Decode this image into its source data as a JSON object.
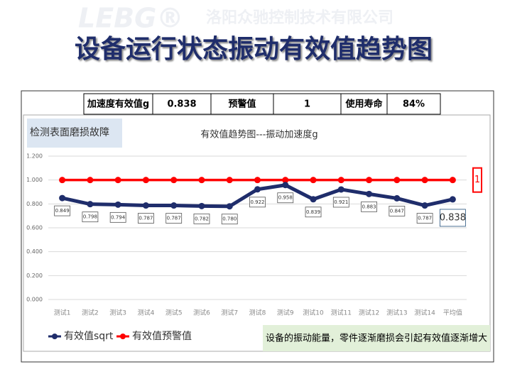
{
  "page": {
    "watermark_logo": "LEBG®",
    "watermark_company": "洛阳众驰控制技术有限公司",
    "heading": "设备运行状态振动有效值趋势图",
    "info_table": [
      "加速度有效值g",
      "0.838",
      "预警值",
      "1",
      "使用寿命",
      "84%"
    ],
    "fault_label": "检测表面磨损故障",
    "note": "设备的振动能量，零件逐渐磨损会引起有效值逐渐增大"
  },
  "chart_data": {
    "type": "line",
    "title": "有效值趋势图---振动加速度g",
    "categories": [
      "测试1",
      "测试2",
      "测试3",
      "测试4",
      "测试5",
      "测试6",
      "测试7",
      "测试8",
      "测试9",
      "测试10",
      "测试11",
      "测试12",
      "测试13",
      "测试14",
      "平均值"
    ],
    "series": [
      {
        "name": "有效值sqrt",
        "color": "#1f2d6b",
        "values": [
          0.849,
          0.798,
          0.794,
          0.787,
          0.787,
          0.782,
          0.78,
          0.922,
          0.958,
          0.839,
          0.921,
          0.883,
          0.847,
          0.787,
          0.838
        ],
        "value_labels": [
          "0.849",
          "0.798",
          "0.794",
          "0.787",
          "0.787",
          "0.782",
          "0.780",
          "0.922",
          "0.958",
          "0.839",
          "0.921",
          "0.883",
          "0.847",
          "0.787",
          "0.838"
        ]
      },
      {
        "name": "有效值预警值",
        "color": "#ff0000",
        "values": [
          1,
          1,
          1,
          1,
          1,
          1,
          1,
          1,
          1,
          1,
          1,
          1,
          1,
          1,
          1
        ]
      }
    ],
    "ylim": [
      0,
      1.2
    ],
    "yticks": [
      {
        "value": 0,
        "label": "0.000"
      },
      {
        "value": 0.2,
        "label": "0.200"
      },
      {
        "value": 0.4,
        "label": "0.400"
      },
      {
        "value": 0.6,
        "label": "0.600"
      },
      {
        "value": 0.8,
        "label": "0.800"
      },
      {
        "value": 1,
        "label": "1.000"
      },
      {
        "value": 1.2,
        "label": "1.200"
      }
    ],
    "grid": true
  }
}
